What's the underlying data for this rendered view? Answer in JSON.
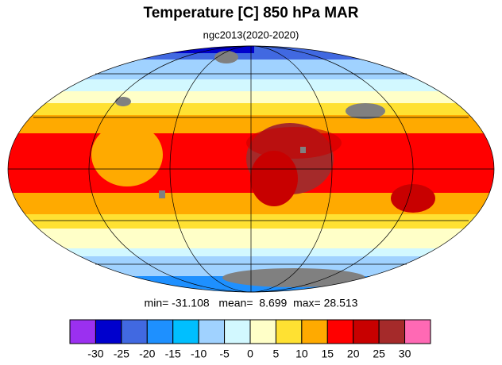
{
  "title": "Temperature [C] 850 hPa MAR",
  "subtitle": "ngc2013(2020-2020)",
  "stats": "min= -31.108   mean=  8.699  max= 28.513",
  "colorbar": {
    "labels": [
      -30,
      -25,
      -20,
      -15,
      -10,
      -5,
      0,
      5,
      10,
      15,
      20,
      25,
      30
    ],
    "colors": [
      "#9b30f0",
      "#0000cd",
      "#4169e1",
      "#1e90ff",
      "#00bfff",
      "#a0d2ff",
      "#d2f8ff",
      "#ffffc8",
      "#ffe132",
      "#ffaa00",
      "#ff0000",
      "#c80000",
      "#a52a2a",
      "#ff69b4"
    ]
  }
}
